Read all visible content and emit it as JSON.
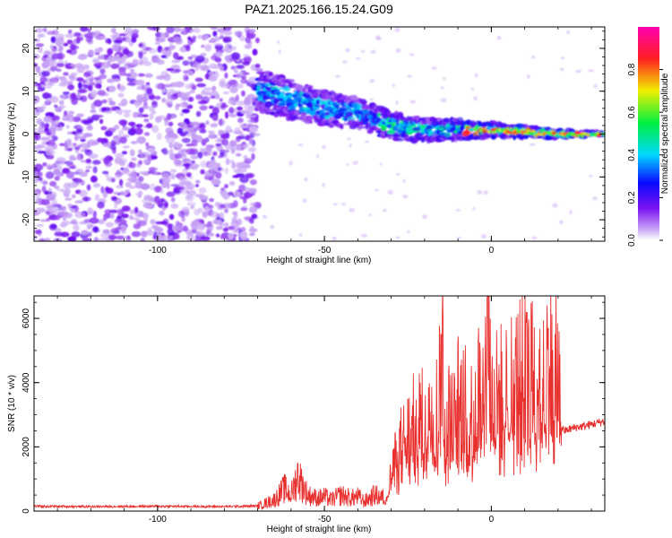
{
  "title": "PAZ1.2025.166.15.24.G09",
  "chart_data": [
    {
      "type": "heatmap",
      "xlabel": "Height of straight line (km)",
      "ylabel": "Frequency (Hz)",
      "xlim": [
        -137,
        34
      ],
      "ylim": [
        -25,
        25
      ],
      "x_ticks": [
        -100,
        -50,
        0
      ],
      "y_ticks": [
        -20,
        -10,
        0,
        10,
        20
      ],
      "colorbar": {
        "label": "Normalized spectral amplitude",
        "range": [
          0,
          1
        ],
        "ticks": [
          "0.0",
          "0.2",
          "0.4",
          "0.6",
          "0.8"
        ],
        "colormap": "white-purple-blue-cyan-green-yellow-red-magenta"
      },
      "description_points": {
        "noise_region_x": [
          -137,
          -70
        ],
        "signal_ridge": [
          {
            "x": -68,
            "f": 10
          },
          {
            "x": -60,
            "f": 8
          },
          {
            "x": -50,
            "f": 6
          },
          {
            "x": -40,
            "f": 5
          },
          {
            "x": -30,
            "f": 2
          },
          {
            "x": -20,
            "f": 1
          },
          {
            "x": -10,
            "f": 1
          },
          {
            "x": 0,
            "f": 1
          },
          {
            "x": 10,
            "f": 0.5
          },
          {
            "x": 20,
            "f": 0
          },
          {
            "x": 34,
            "f": 0
          }
        ]
      }
    },
    {
      "type": "line",
      "xlabel": "Height of straight line (km)",
      "ylabel": "SNR (10 * v/v)",
      "xlim": [
        -137,
        34
      ],
      "ylim": [
        0,
        6700
      ],
      "x_ticks": [
        -100,
        -50,
        0
      ],
      "y_ticks": [
        0,
        2000,
        4000,
        6000
      ],
      "line_color": "#e8312f",
      "series": [
        {
          "x": [
            -137,
            -120,
            -100,
            -80,
            -70,
            -65,
            -62,
            -60,
            -58,
            -55,
            -52,
            -50,
            -48,
            -45,
            -42,
            -40,
            -38,
            -35,
            -32,
            -30,
            -28,
            -25,
            -22,
            -20,
            -18,
            -16,
            -15,
            -14,
            -12,
            -10,
            -8,
            -6,
            -4,
            -2,
            -1,
            0,
            2,
            5,
            8,
            10,
            12,
            14,
            15,
            17,
            18,
            20,
            21,
            22,
            25,
            28,
            30,
            34
          ],
          "values": [
            150,
            140,
            150,
            140,
            160,
            350,
            700,
            500,
            1100,
            500,
            400,
            450,
            350,
            500,
            400,
            450,
            300,
            500,
            400,
            1000,
            1800,
            2200,
            2700,
            2500,
            3500,
            2800,
            5000,
            3000,
            2600,
            3200,
            3000,
            2800,
            3600,
            3300,
            6600,
            3400,
            3300,
            3700,
            3800,
            4100,
            3900,
            4300,
            4200,
            4400,
            4300,
            4200,
            2600,
            2500,
            2600,
            2650,
            2700,
            2800
          ]
        }
      ]
    }
  ]
}
